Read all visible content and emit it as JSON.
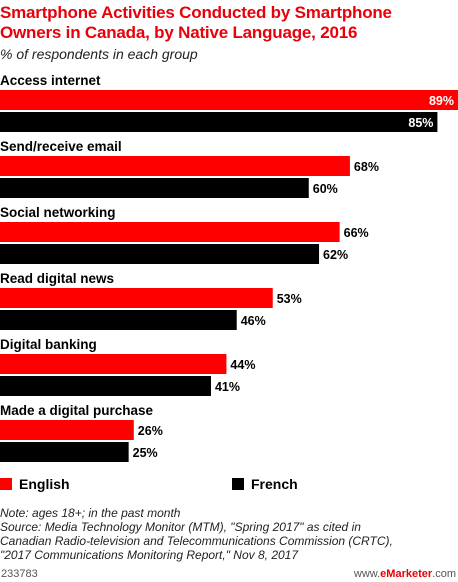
{
  "title": "Smartphone Activities Conducted by Smartphone Owners in Canada, by Native Language, 2016",
  "subtitle": "% of respondents in each group",
  "legend": {
    "english": "English",
    "french": "French"
  },
  "colors": {
    "english": "#ff0000",
    "french": "#000000"
  },
  "notes": [
    "Note: ages 18+; in the past month",
    "Source: Media Technology Monitor (MTM), \"Spring 2017\" as cited in",
    "Canadian Radio-television and Telecommunications Commission (CRTC),",
    "\"2017 Communications Monitoring Report,\" Nov 8, 2017"
  ],
  "footer": {
    "id": "233783",
    "brand_prefix": "www.",
    "brand_name": "eMarketer",
    "brand_suffix": ".com"
  },
  "chart_data": {
    "type": "bar",
    "orientation": "horizontal",
    "categories": [
      "Access internet",
      "Send/receive email",
      "Social networking",
      "Read digital news",
      "Digital banking",
      "Made a digital purchase"
    ],
    "series": [
      {
        "name": "English",
        "values": [
          89,
          68,
          66,
          53,
          44,
          26
        ]
      },
      {
        "name": "French",
        "values": [
          85,
          60,
          62,
          46,
          41,
          25
        ]
      }
    ],
    "value_labels": {
      "English": [
        "89%",
        "68%",
        "66%",
        "53%",
        "44%",
        "26%"
      ],
      "French": [
        "85%",
        "60%",
        "62%",
        "46%",
        "41%",
        "25%"
      ]
    },
    "xlim": [
      0,
      89
    ],
    "grid": false,
    "legend_position": "bottom-left"
  }
}
